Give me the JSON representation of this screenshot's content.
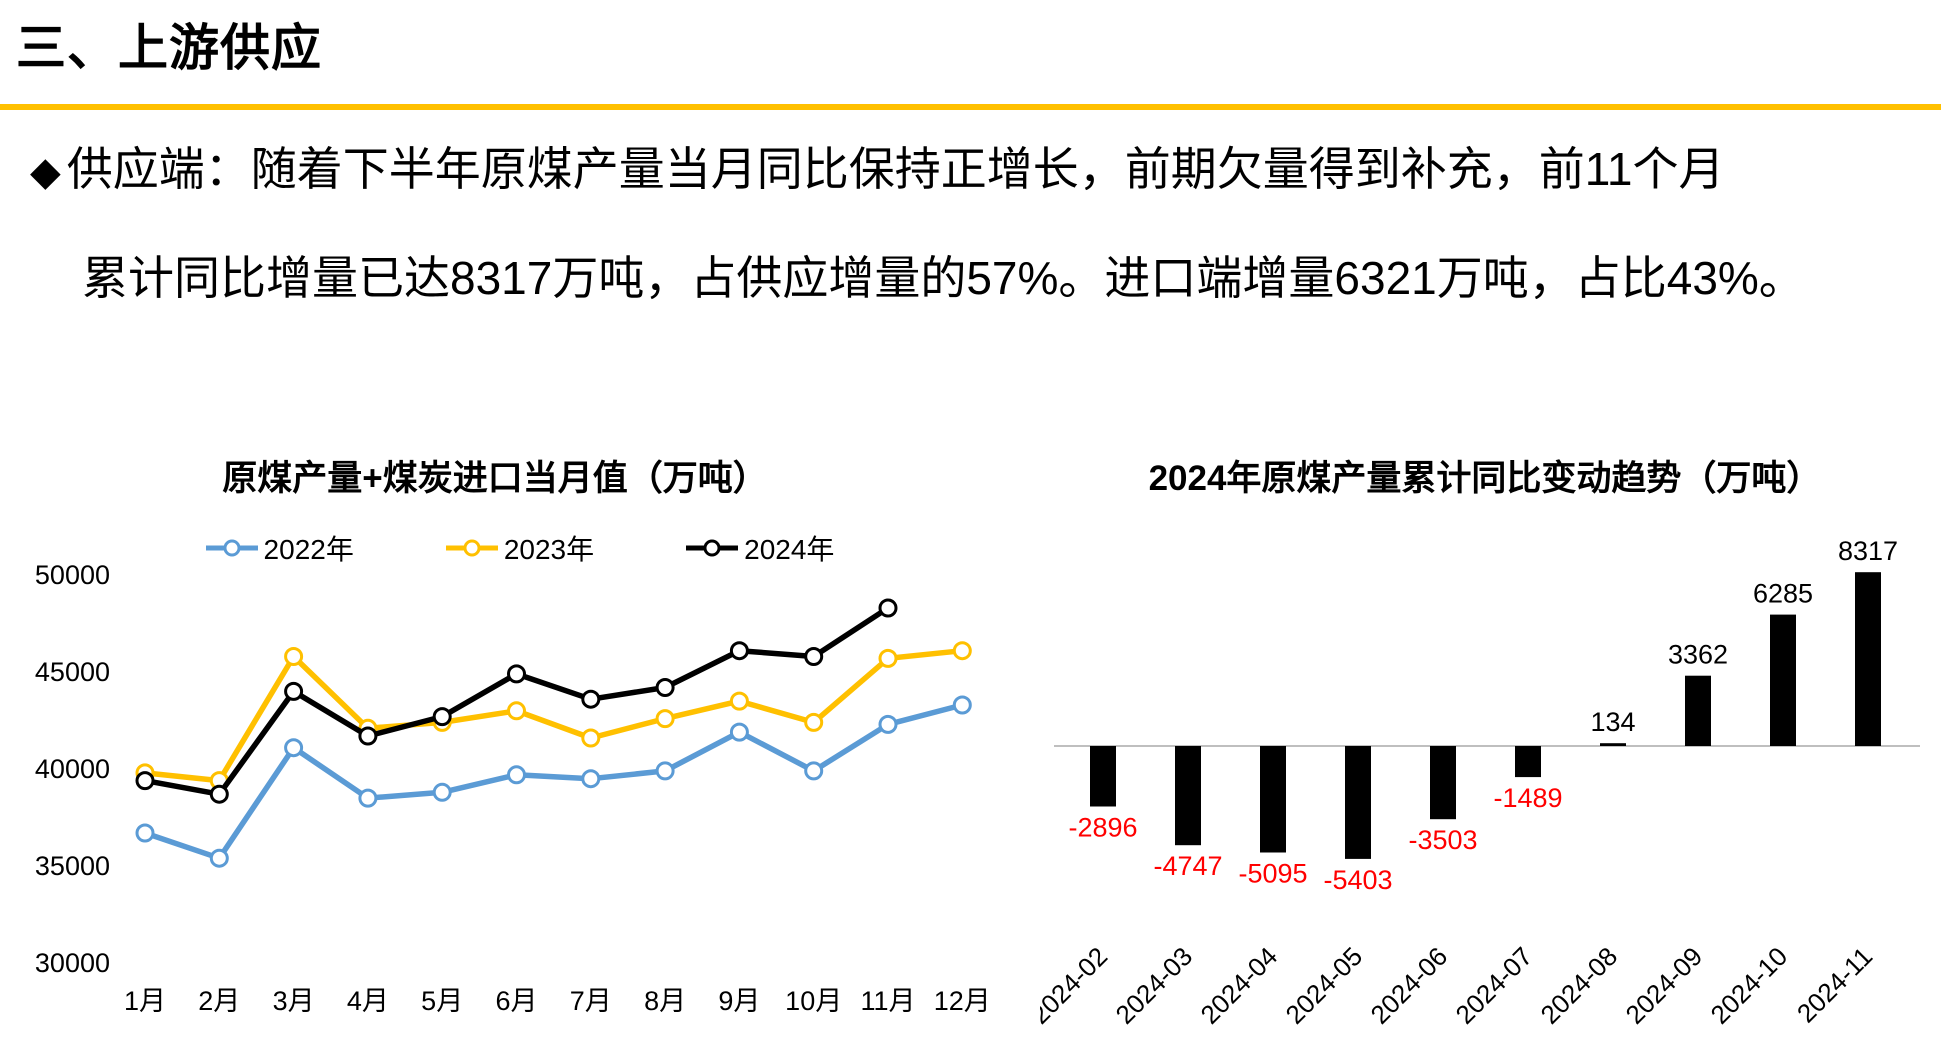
{
  "header": {
    "title": "三、上游供应",
    "rule_color": "#FFC000"
  },
  "bullet": {
    "marker": "◆",
    "line1": "供应端：随着下半年原煤产量当月同比保持正增长，前期欠量得到补充，前11个月",
    "line2": "累计同比增量已达8317万吨，占供应增量的57%。进口端增量6321万吨，占比43%。"
  },
  "chart_data": [
    {
      "type": "line",
      "title": "原煤产量+煤炭进口当月值（万吨）",
      "categories": [
        "1月",
        "2月",
        "3月",
        "4月",
        "5月",
        "6月",
        "7月",
        "8月",
        "9月",
        "10月",
        "11月",
        "12月"
      ],
      "series": [
        {
          "name": "2022年",
          "color": "#5B9BD5",
          "values": [
            36700,
            35400,
            41100,
            38500,
            38800,
            39700,
            39500,
            39900,
            41900,
            39900,
            42300,
            43300
          ]
        },
        {
          "name": "2023年",
          "color": "#FFC000",
          "values": [
            39800,
            39400,
            45800,
            42100,
            42400,
            43000,
            41600,
            42600,
            43500,
            42400,
            45700,
            46100
          ]
        },
        {
          "name": "2024年",
          "color": "#000000",
          "values": [
            39400,
            38700,
            44000,
            41700,
            42700,
            44900,
            43600,
            44200,
            46100,
            45800,
            48300
          ]
        }
      ],
      "ylim": [
        30000,
        50000
      ],
      "yticks": [
        50000,
        45000,
        40000,
        35000,
        30000
      ],
      "grid": false,
      "legend_position": "top",
      "marker": "open-circle"
    },
    {
      "type": "bar",
      "title": "2024年原煤产量累计同比变动趋势（万吨）",
      "categories": [
        "2024-02",
        "2024-03",
        "2024-04",
        "2024-05",
        "2024-06",
        "2024-07",
        "2024-08",
        "2024-09",
        "2024-10",
        "2024-11"
      ],
      "values": [
        -2896,
        -4747,
        -5095,
        -5403,
        -3503,
        -1489,
        134,
        3362,
        6285,
        8317
      ],
      "bar_color": "#000000",
      "positive_label_color": "#000000",
      "negative_label_color": "#FF0000",
      "axis_line_color": "#BFBFBF",
      "ylim": [
        -6000,
        9000
      ],
      "grid": false,
      "category_label_rotation": -45
    }
  ]
}
